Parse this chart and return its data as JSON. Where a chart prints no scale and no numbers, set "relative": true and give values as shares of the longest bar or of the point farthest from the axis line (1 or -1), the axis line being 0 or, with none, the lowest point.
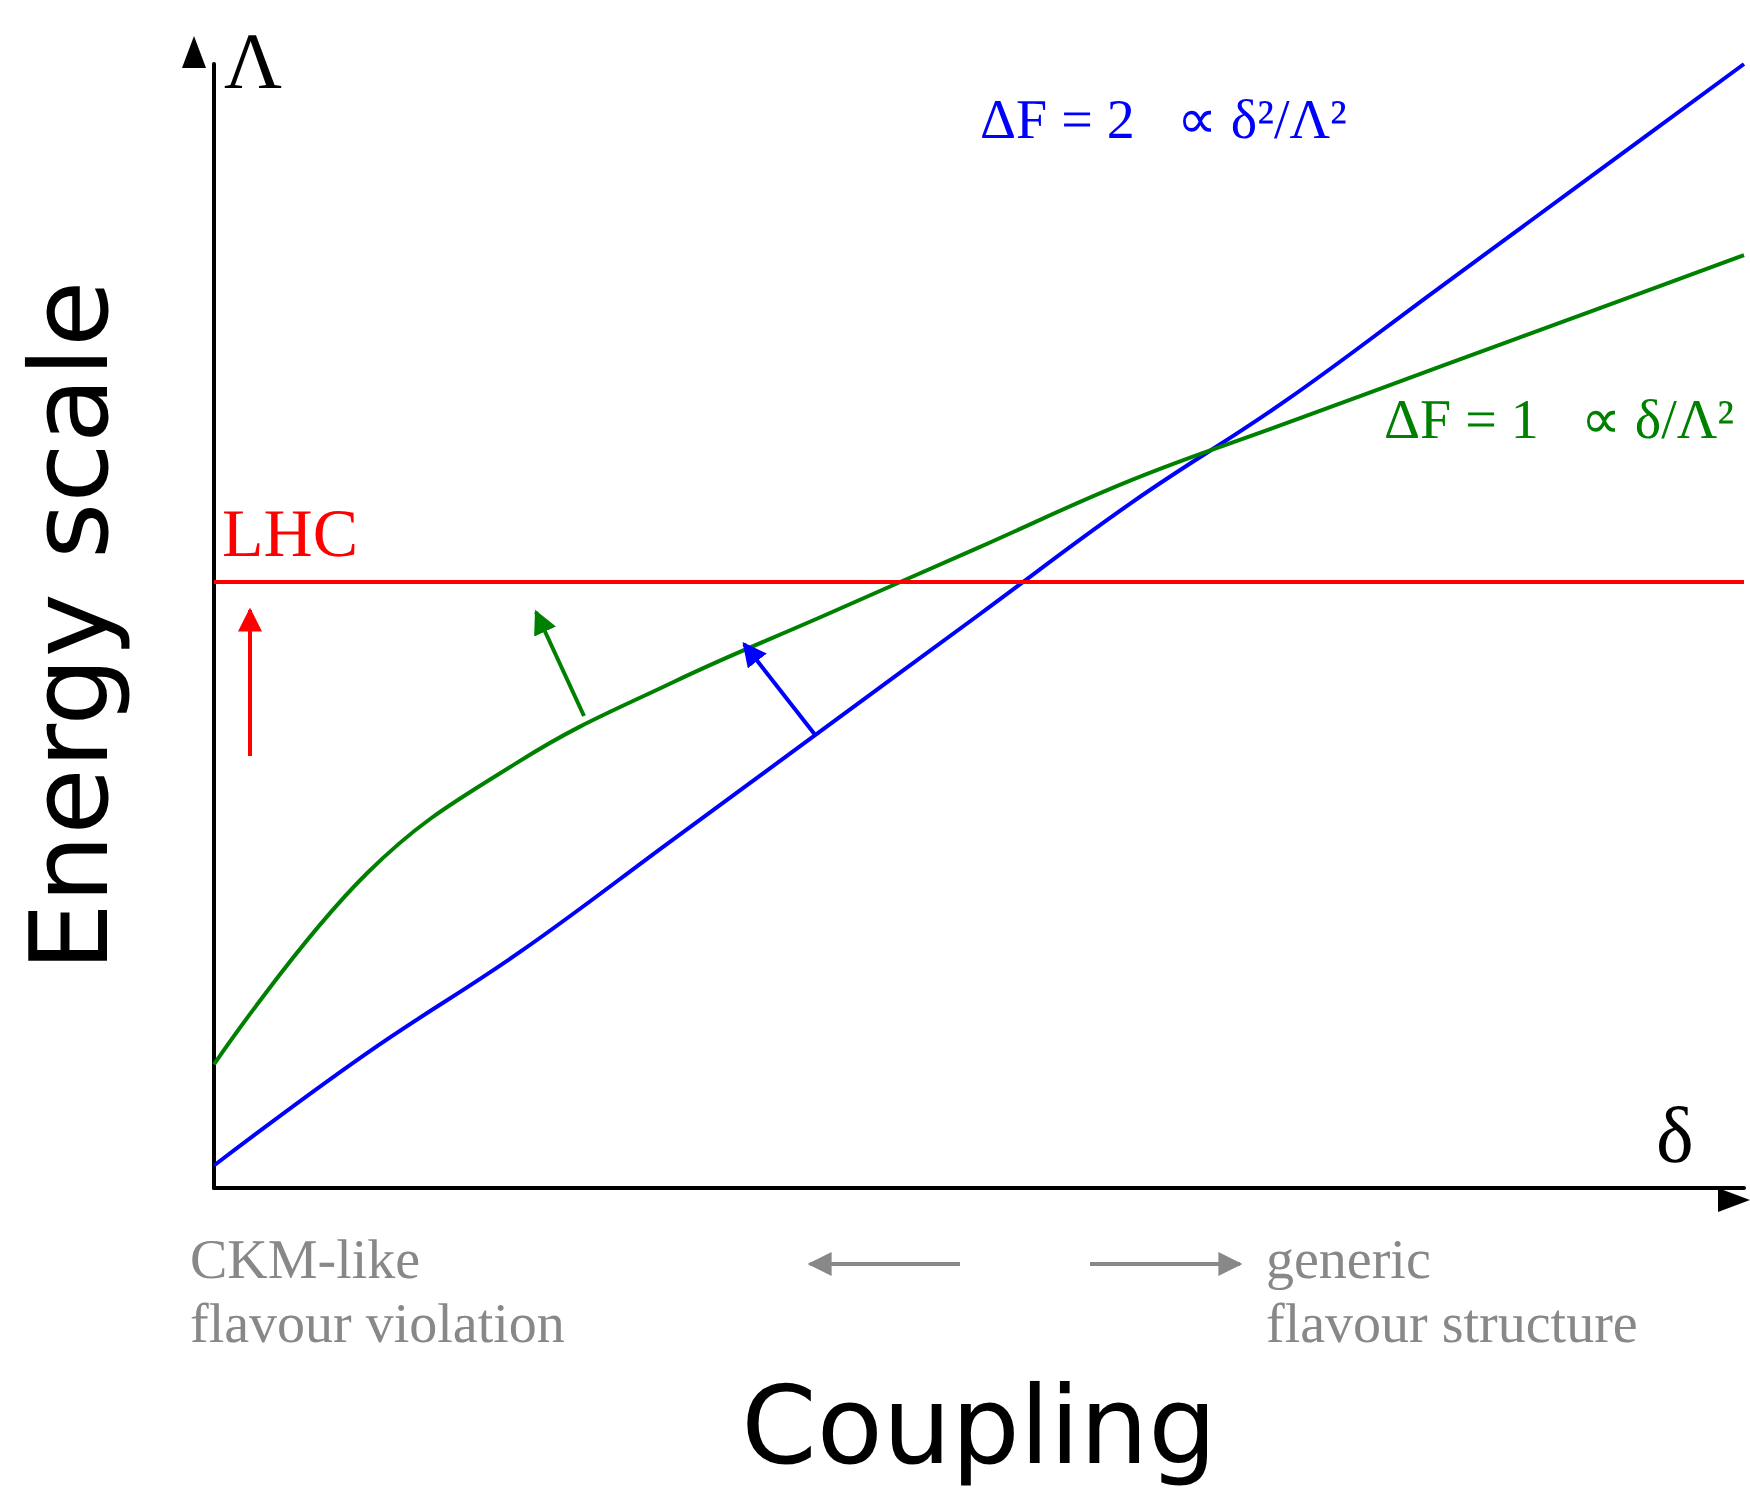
{
  "chart_data": {
    "type": "line",
    "relative": true,
    "marker": "none",
    "xlabel": "Coupling",
    "ylabel": "Energy scale",
    "categories": [
      null,
      null,
      null,
      null,
      null,
      null,
      null,
      null,
      null,
      null,
      null
    ],
    "series": [
      {
        "name": "ΔF = 2   ∝ δ²/Λ²",
        "color": "#0000ff",
        "values": [
          0.02,
          0.12,
          0.21,
          0.31,
          0.41,
          0.51,
          0.61,
          0.7,
          0.8,
          0.9,
          1.0
        ]
      },
      {
        "name": "ΔF = 1   ∝ δ/Λ²",
        "color": "#008000",
        "values": [
          0.11,
          0.28,
          0.38,
          0.45,
          0.51,
          0.57,
          0.63,
          0.68,
          0.73,
          0.78,
          0.83
        ]
      }
    ],
    "ref_lines": [
      {
        "axis": "y",
        "value": 0.54,
        "label": "LHC",
        "color": "#ff0000"
      }
    ],
    "annotations": [
      "Λ",
      "δ",
      "CKM-like\nflavour violation",
      "generic\nflavour structure"
    ]
  }
}
